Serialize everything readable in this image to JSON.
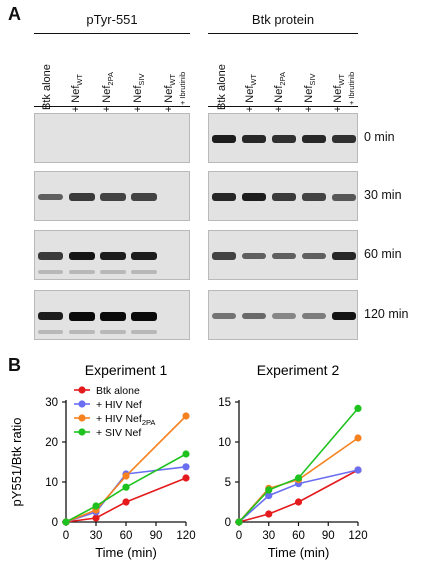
{
  "panel_a": {
    "letter": "A",
    "groups": [
      {
        "title": "pTyr-551",
        "lanes": [
          "Btk alone",
          "+ Nef_WT",
          "+ Nef_2PA",
          "+ Nef_SIV",
          "+ Nef_WT|+ Ibrutinib"
        ]
      },
      {
        "title": "Btk protein",
        "lanes": [
          "Btk alone",
          "+ Nef_WT",
          "+ Nef_2PA",
          "+ Nef_SIV",
          "+ Nef_WT|+ Ibrutinib"
        ]
      }
    ],
    "times": [
      "0 min",
      "30 min",
      "60 min",
      "120 min"
    ],
    "band_intensity": {
      "pTyr-551": [
        [
          0,
          0,
          0,
          0,
          0
        ],
        [
          0.55,
          0.75,
          0.7,
          0.7,
          0
        ],
        [
          0.75,
          0.95,
          0.9,
          0.9,
          0
        ],
        [
          0.9,
          1.0,
          1.0,
          1.0,
          0
        ]
      ],
      "Btk protein": [
        [
          0.9,
          0.85,
          0.8,
          0.85,
          0.8
        ],
        [
          0.85,
          0.9,
          0.75,
          0.7,
          0.6
        ],
        [
          0.7,
          0.55,
          0.55,
          0.55,
          0.85
        ],
        [
          0.45,
          0.5,
          0.35,
          0.4,
          0.95
        ]
      ]
    }
  },
  "panel_b": {
    "letter": "B",
    "ylabel": "pY551/Btk ratio",
    "colors": {
      "Btk alone": "#e41a1c",
      "+ HIV Nef": "#6a6ef0",
      "+ HIV Nef2PA": "#f5821f",
      "+ SIV Nef": "#1ec21e"
    },
    "legend": [
      "Btk alone",
      "+ HIV Nef",
      "+ HIV Nef|2PA",
      "+ SIV Nef"
    ]
  },
  "chart_data": [
    {
      "type": "line",
      "title": "Experiment 1",
      "xlabel": "Time (min)",
      "ylabel": "pY551/Btk ratio",
      "x": [
        0,
        30,
        60,
        120
      ],
      "xticks": [
        0,
        30,
        60,
        90,
        120
      ],
      "yticks": [
        0,
        10,
        20,
        30
      ],
      "xlim": [
        0,
        120
      ],
      "ylim": [
        0,
        30
      ],
      "series": [
        {
          "name": "Btk alone",
          "color": "#e41a1c",
          "values": [
            0,
            1,
            5,
            11
          ]
        },
        {
          "name": "+ HIV Nef",
          "color": "#6a6ef0",
          "values": [
            0,
            2.5,
            12,
            13.8
          ]
        },
        {
          "name": "+ HIV Nef2PA",
          "color": "#f5821f",
          "values": [
            0,
            3,
            11.5,
            26.5
          ]
        },
        {
          "name": "+ SIV Nef",
          "color": "#1ec21e",
          "values": [
            0,
            4,
            8.7,
            17
          ]
        }
      ]
    },
    {
      "type": "line",
      "title": "Experiment 2",
      "xlabel": "Time (min)",
      "ylabel": "",
      "x": [
        0,
        30,
        60,
        120
      ],
      "xticks": [
        0,
        30,
        60,
        90,
        120
      ],
      "yticks": [
        0,
        5,
        10,
        15
      ],
      "xlim": [
        0,
        120
      ],
      "ylim": [
        0,
        15
      ],
      "series": [
        {
          "name": "Btk alone",
          "color": "#e41a1c",
          "values": [
            0,
            1,
            2.5,
            6.5
          ]
        },
        {
          "name": "+ HIV Nef",
          "color": "#6a6ef0",
          "values": [
            0,
            3.3,
            4.8,
            6.5
          ]
        },
        {
          "name": "+ HIV Nef2PA",
          "color": "#f5821f",
          "values": [
            0,
            4.2,
            5.3,
            10.5
          ]
        },
        {
          "name": "+ SIV Nef",
          "color": "#1ec21e",
          "values": [
            0,
            4,
            5.5,
            14.2
          ]
        }
      ]
    }
  ]
}
